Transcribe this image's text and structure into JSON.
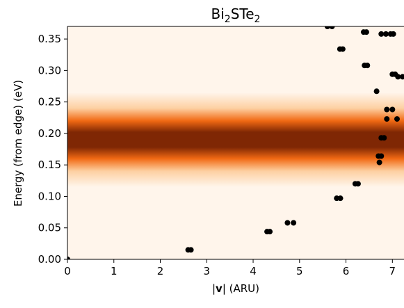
{
  "chart_data": {
    "type": "scatter",
    "title": "Bi",
    "title_sub": "2",
    "title_mid": "STe",
    "title_sub2": "2",
    "xlabel_bar1": "|",
    "xlabel_v": "v",
    "xlabel_rest": "| (ARU)",
    "ylabel": "Energy (from edge) (eV)",
    "xlim": [
      0,
      7.25
    ],
    "ylim": [
      0,
      0.37
    ],
    "xticks": [
      0,
      1,
      2,
      3,
      4,
      5,
      6,
      7
    ],
    "xtick_labels": [
      "0",
      "1",
      "2",
      "3",
      "4",
      "5",
      "6",
      "7"
    ],
    "yticks": [
      0.0,
      0.05,
      0.1,
      0.15,
      0.2,
      0.25,
      0.3,
      0.35
    ],
    "ytick_labels": [
      "0.00",
      "0.05",
      "0.10",
      "0.15",
      "0.20",
      "0.25",
      "0.30",
      "0.35"
    ],
    "heatmap": {
      "description_free": true,
      "center_energy": 0.19,
      "colormap": "Oranges",
      "uniform_along_x": true
    },
    "points": [
      {
        "x": 0.0,
        "y": 0.0
      },
      {
        "x": 2.6,
        "y": 0.015
      },
      {
        "x": 2.66,
        "y": 0.015
      },
      {
        "x": 4.3,
        "y": 0.044
      },
      {
        "x": 4.36,
        "y": 0.044
      },
      {
        "x": 4.74,
        "y": 0.058
      },
      {
        "x": 4.87,
        "y": 0.058
      },
      {
        "x": 5.8,
        "y": 0.097
      },
      {
        "x": 5.88,
        "y": 0.097
      },
      {
        "x": 6.2,
        "y": 0.12
      },
      {
        "x": 6.26,
        "y": 0.12
      },
      {
        "x": 6.72,
        "y": 0.154
      },
      {
        "x": 6.7,
        "y": 0.164
      },
      {
        "x": 6.76,
        "y": 0.164
      },
      {
        "x": 6.76,
        "y": 0.193
      },
      {
        "x": 6.82,
        "y": 0.193
      },
      {
        "x": 6.88,
        "y": 0.223
      },
      {
        "x": 7.1,
        "y": 0.223
      },
      {
        "x": 6.88,
        "y": 0.238
      },
      {
        "x": 7.0,
        "y": 0.238
      },
      {
        "x": 6.66,
        "y": 0.267
      },
      {
        "x": 7.0,
        "y": 0.294
      },
      {
        "x": 7.06,
        "y": 0.294
      },
      {
        "x": 7.12,
        "y": 0.29
      },
      {
        "x": 7.22,
        "y": 0.29
      },
      {
        "x": 6.4,
        "y": 0.308
      },
      {
        "x": 6.46,
        "y": 0.308
      },
      {
        "x": 5.87,
        "y": 0.334
      },
      {
        "x": 5.93,
        "y": 0.334
      },
      {
        "x": 6.38,
        "y": 0.361
      },
      {
        "x": 6.44,
        "y": 0.361
      },
      {
        "x": 6.76,
        "y": 0.358
      },
      {
        "x": 6.86,
        "y": 0.358
      },
      {
        "x": 6.96,
        "y": 0.358
      },
      {
        "x": 7.02,
        "y": 0.358
      },
      {
        "x": 5.6,
        "y": 0.37
      },
      {
        "x": 5.7,
        "y": 0.37
      }
    ],
    "grid": false,
    "legend": "none",
    "colors": {
      "band_dark": "#7f2704",
      "band_mid": "#f16913",
      "band_light": "#fdd0a2",
      "background": "#fff5eb",
      "points": "#000000"
    }
  }
}
